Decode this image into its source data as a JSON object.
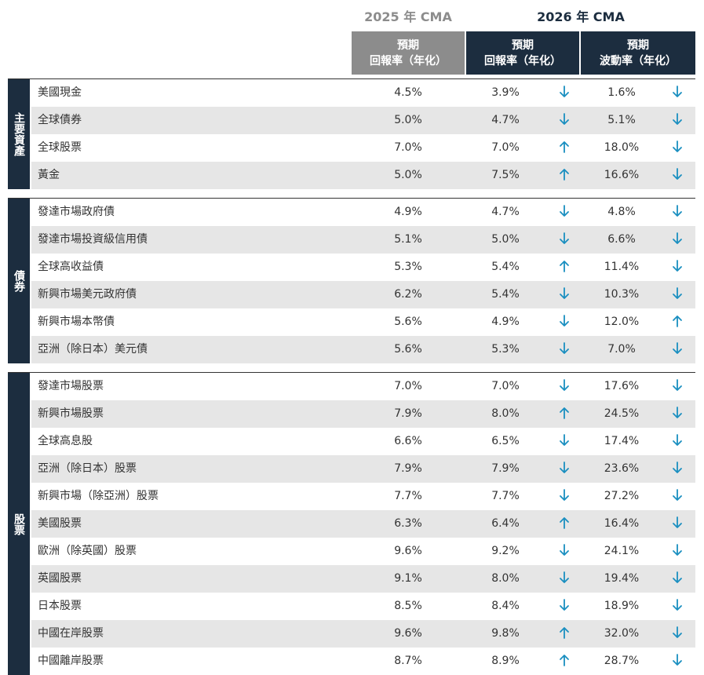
{
  "header": {
    "cma_2025": "2025 年 CMA",
    "cma_2026": "2026 年 CMA",
    "columns": [
      {
        "line1": "預期",
        "line2": "回報率（年化）"
      },
      {
        "line1": "預期",
        "line2": "回報率（年化）"
      },
      {
        "line1": "預期",
        "line2": "波動率（年化）"
      }
    ]
  },
  "groups": [
    {
      "label": "主要資產",
      "rows": [
        {
          "name": "美國現金",
          "r2025": "4.5%",
          "r2026": "3.9%",
          "r2026_dir": "down",
          "vol": "1.6%",
          "vol_dir": "down"
        },
        {
          "name": "全球債券",
          "r2025": "5.0%",
          "r2026": "4.7%",
          "r2026_dir": "down",
          "vol": "5.1%",
          "vol_dir": "down"
        },
        {
          "name": "全球股票",
          "r2025": "7.0%",
          "r2026": "7.0%",
          "r2026_dir": "up",
          "vol": "18.0%",
          "vol_dir": "down"
        },
        {
          "name": "黃金",
          "r2025": "5.0%",
          "r2026": "7.5%",
          "r2026_dir": "up",
          "vol": "16.6%",
          "vol_dir": "down"
        }
      ]
    },
    {
      "label": "債券",
      "rows": [
        {
          "name": "發達市場政府債",
          "r2025": "4.9%",
          "r2026": "4.7%",
          "r2026_dir": "down",
          "vol": "4.8%",
          "vol_dir": "down"
        },
        {
          "name": "發達市場投資級信用債",
          "r2025": "5.1%",
          "r2026": "5.0%",
          "r2026_dir": "down",
          "vol": "6.6%",
          "vol_dir": "down"
        },
        {
          "name": "全球高收益債",
          "r2025": "5.3%",
          "r2026": "5.4%",
          "r2026_dir": "up",
          "vol": "11.4%",
          "vol_dir": "down"
        },
        {
          "name": "新興市場美元政府債",
          "r2025": "6.2%",
          "r2026": "5.4%",
          "r2026_dir": "down",
          "vol": "10.3%",
          "vol_dir": "down"
        },
        {
          "name": "新興市場本幣債",
          "r2025": "5.6%",
          "r2026": "4.9%",
          "r2026_dir": "down",
          "vol": "12.0%",
          "vol_dir": "up"
        },
        {
          "name": "亞洲（除日本）美元債",
          "r2025": "5.6%",
          "r2026": "5.3%",
          "r2026_dir": "down",
          "vol": "7.0%",
          "vol_dir": "down"
        }
      ]
    },
    {
      "label": "股票",
      "rows": [
        {
          "name": "發達市場股票",
          "r2025": "7.0%",
          "r2026": "7.0%",
          "r2026_dir": "down",
          "vol": "17.6%",
          "vol_dir": "down"
        },
        {
          "name": "新興市場股票",
          "r2025": "7.9%",
          "r2026": "8.0%",
          "r2026_dir": "up",
          "vol": "24.5%",
          "vol_dir": "down"
        },
        {
          "name": "全球高息股",
          "r2025": "6.6%",
          "r2026": "6.5%",
          "r2026_dir": "down",
          "vol": "17.4%",
          "vol_dir": "down"
        },
        {
          "name": "亞洲（除日本）股票",
          "r2025": "7.9%",
          "r2026": "7.9%",
          "r2026_dir": "down",
          "vol": "23.6%",
          "vol_dir": "down"
        },
        {
          "name": "新興市場（除亞洲）股票",
          "r2025": "7.7%",
          "r2026": "7.7%",
          "r2026_dir": "down",
          "vol": "27.2%",
          "vol_dir": "down"
        },
        {
          "name": "美國股票",
          "r2025": "6.3%",
          "r2026": "6.4%",
          "r2026_dir": "up",
          "vol": "16.4%",
          "vol_dir": "down"
        },
        {
          "name": "歐洲（除英國）股票",
          "r2025": "9.6%",
          "r2026": "9.2%",
          "r2026_dir": "down",
          "vol": "24.1%",
          "vol_dir": "down"
        },
        {
          "name": "英國股票",
          "r2025": "9.1%",
          "r2026": "8.0%",
          "r2026_dir": "down",
          "vol": "19.4%",
          "vol_dir": "down"
        },
        {
          "name": "日本股票",
          "r2025": "8.5%",
          "r2026": "8.4%",
          "r2026_dir": "down",
          "vol": "18.9%",
          "vol_dir": "down"
        },
        {
          "name": "中國在岸股票",
          "r2025": "9.6%",
          "r2026": "9.8%",
          "r2026_dir": "up",
          "vol": "32.0%",
          "vol_dir": "down"
        },
        {
          "name": "中國離岸股票",
          "r2025": "8.7%",
          "r2026": "8.9%",
          "r2026_dir": "up",
          "vol": "28.7%",
          "vol_dir": "down"
        }
      ]
    }
  ]
}
